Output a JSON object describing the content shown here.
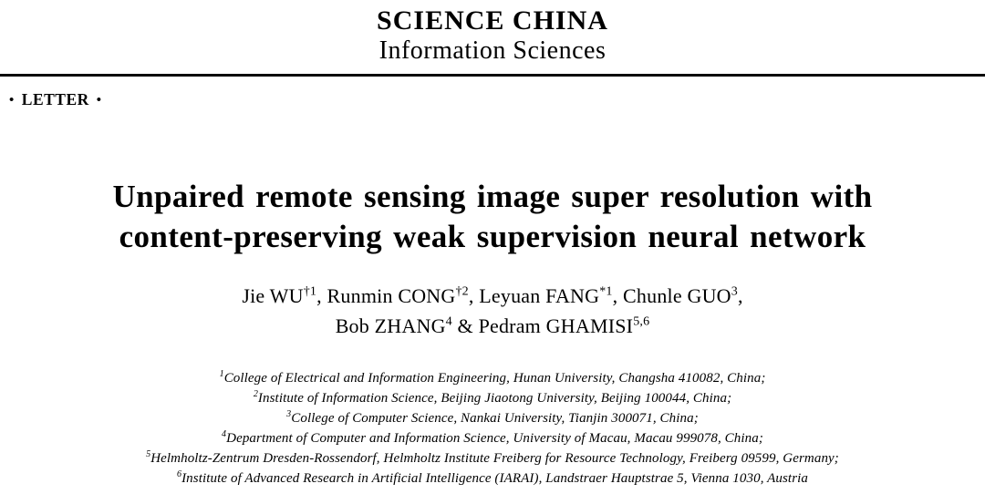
{
  "journal": {
    "name": "SCIENCE CHINA",
    "subtitle": "Information Sciences"
  },
  "article_type": {
    "bullet": "•",
    "label": "LETTER"
  },
  "title": {
    "line1": "Unpaired remote sensing image super resolution with",
    "line2": "content-preserving weak supervision neural network"
  },
  "authors": {
    "line1": [
      {
        "name": "Jie WU",
        "sup": "†1",
        "sep": ", "
      },
      {
        "name": "Runmin CONG",
        "sup": "†2",
        "sep": ", "
      },
      {
        "name": "Leyuan FANG",
        "sup": "*1",
        "sep": ", "
      },
      {
        "name": "Chunle GUO",
        "sup": "3",
        "sep": ","
      }
    ],
    "line2": [
      {
        "name": "Bob ZHANG",
        "sup": "4",
        "sep": " & "
      },
      {
        "name": "Pedram GHAMISI",
        "sup": "5,6",
        "sep": ""
      }
    ]
  },
  "affiliations": [
    {
      "sup": "1",
      "text": "College of Electrical and Information Engineering, Hunan University, Changsha 410082, China;"
    },
    {
      "sup": "2",
      "text": "Institute of Information Science, Beijing Jiaotong University, Beijing 100044, China;"
    },
    {
      "sup": "3",
      "text": "College of Computer Science, Nankai University, Tianjin 300071, China;"
    },
    {
      "sup": "4",
      "text": "Department of Computer and Information Science, University of Macau, Macau 999078, China;"
    },
    {
      "sup": "5",
      "text": "Helmholtz-Zentrum Dresden-Rossendorf, Helmholtz Institute Freiberg for Resource Technology, Freiberg 09599, Germany;"
    },
    {
      "sup": "6",
      "text": "Institute of Advanced Research in Artificial Intelligence (IARAI), Landstraer Hauptstrae 5, Vienna 1030, Austria"
    }
  ]
}
